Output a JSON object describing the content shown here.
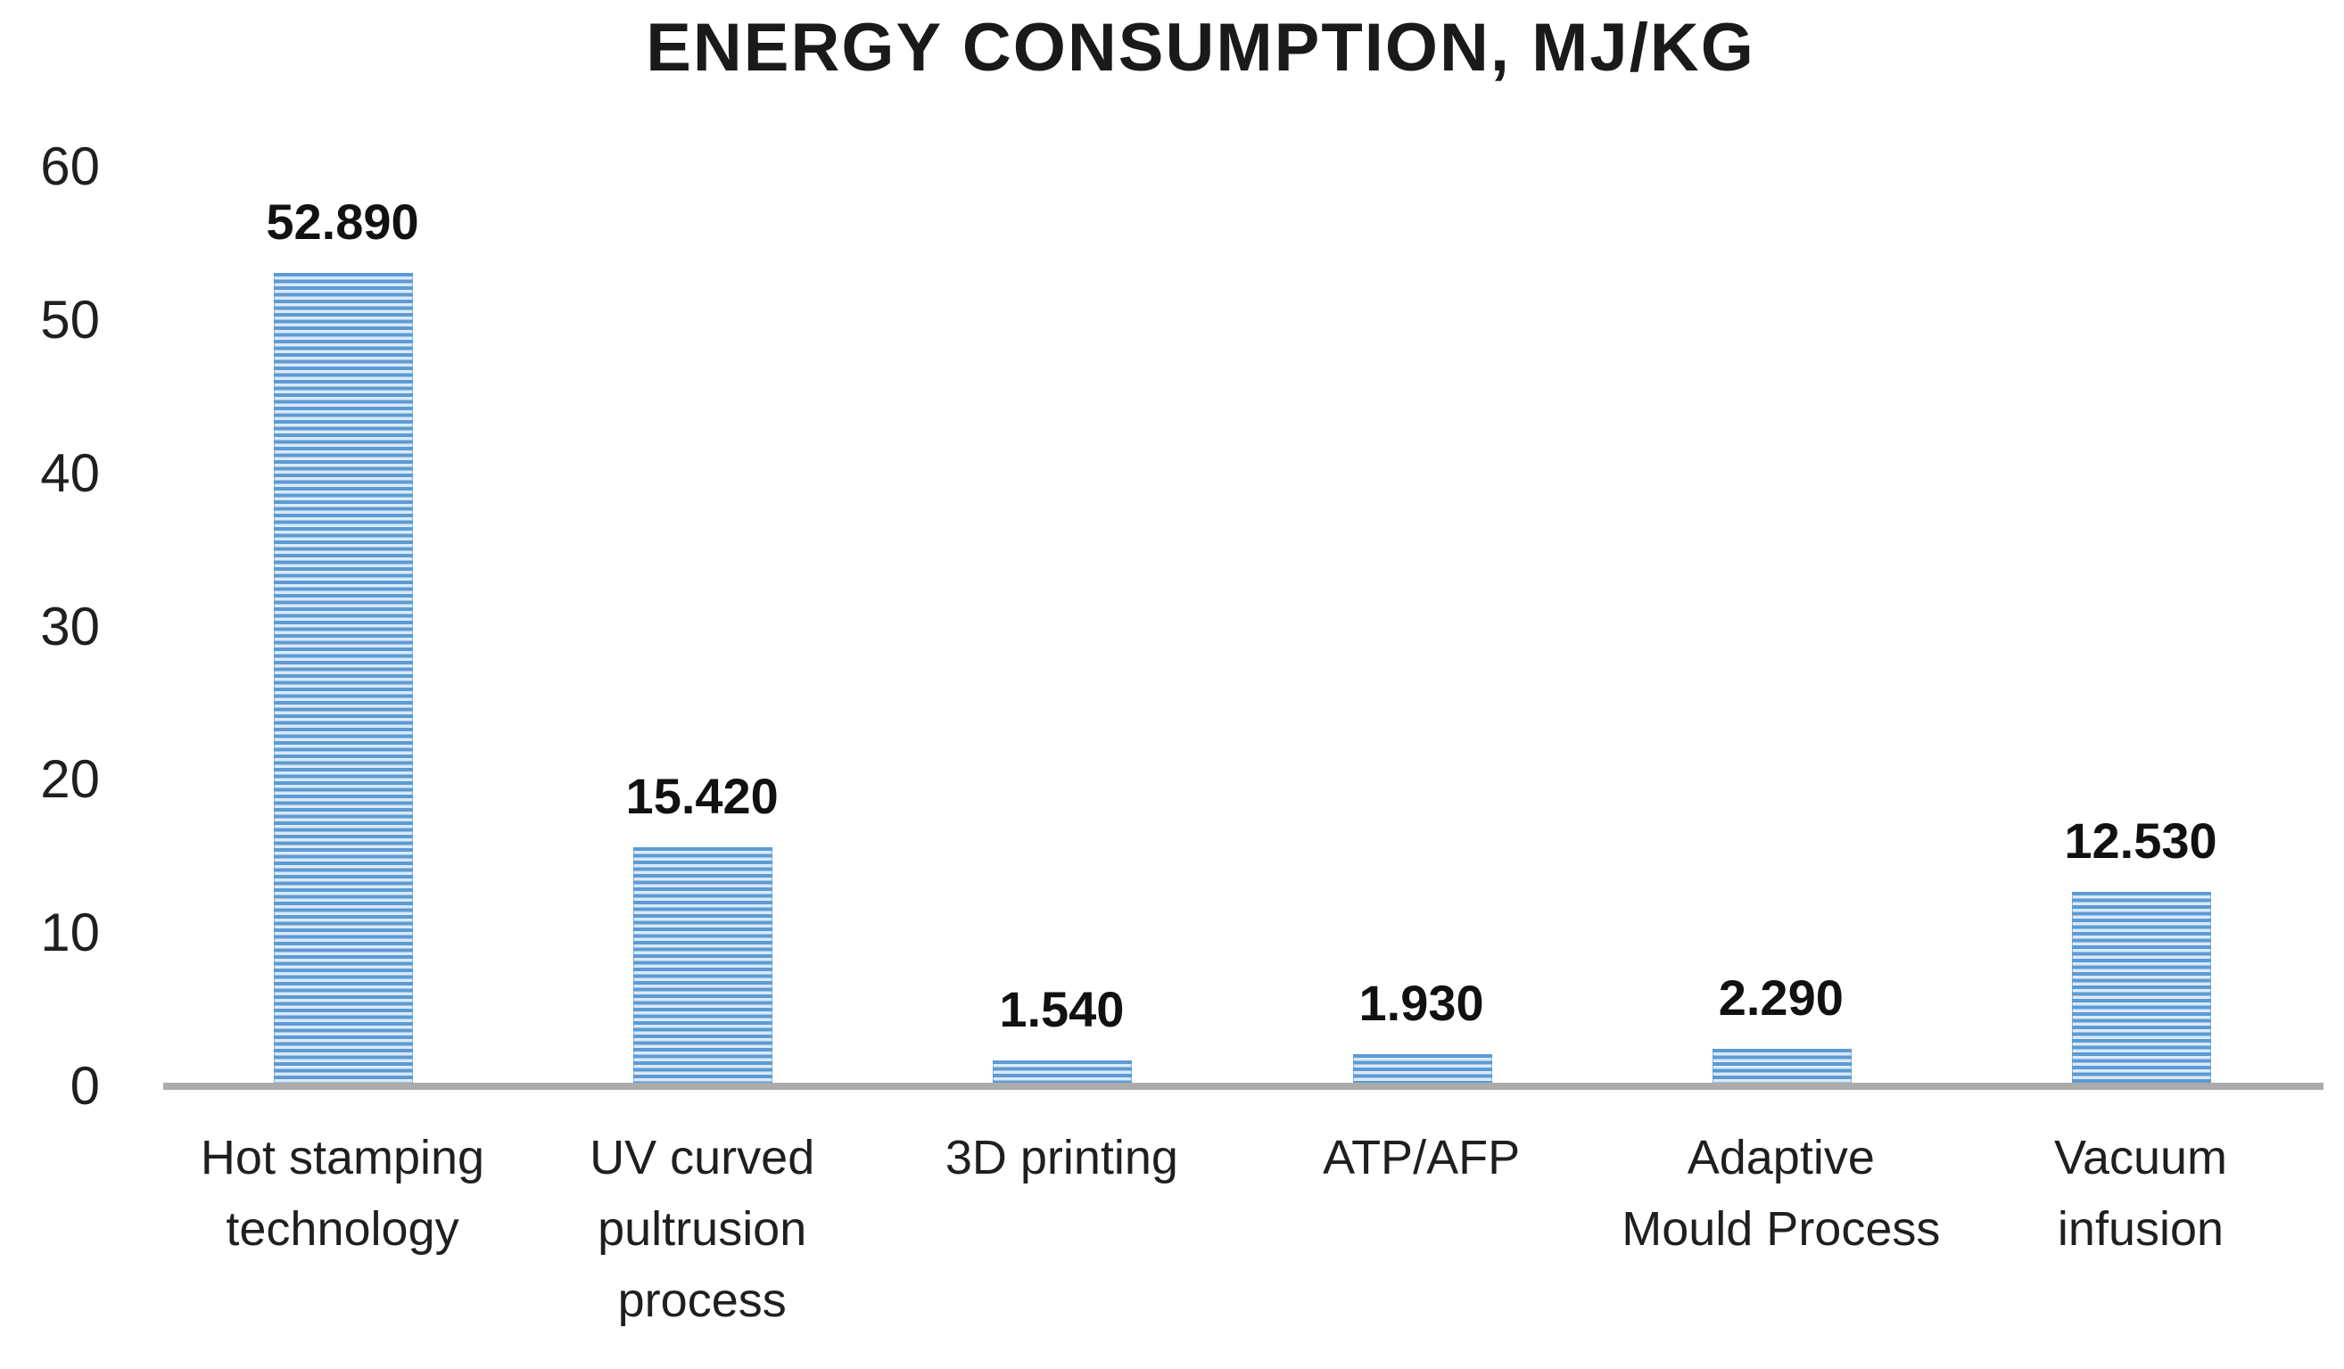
{
  "chart_data": {
    "type": "bar",
    "title": "ENERGY CONSUMPTION, MJ/KG",
    "categories": [
      "Hot stamping technology",
      "UV curved pultrusion process",
      "3D printing",
      "ATP/AFP",
      "Adaptive Mould Process",
      "Vacuum infusion"
    ],
    "category_lines": [
      [
        "Hot stamping",
        "technology"
      ],
      [
        "UV curved",
        "pultrusion",
        "process"
      ],
      [
        "3D printing"
      ],
      [
        "ATP/AFP"
      ],
      [
        "Adaptive",
        "Mould Process"
      ],
      [
        "Vacuum",
        "infusion"
      ]
    ],
    "values": [
      52.89,
      15.42,
      1.54,
      1.93,
      2.29,
      12.53
    ],
    "value_labels": [
      "52.890",
      "15.420",
      "1.540",
      "1.930",
      "2.290",
      "12.530"
    ],
    "y_ticks": [
      0,
      10,
      20,
      30,
      40,
      50,
      60
    ],
    "ylim": [
      0,
      60
    ],
    "xlabel": "",
    "ylabel": "",
    "grid": false,
    "legend": false,
    "bar_fill_pattern": "horizontal-stripes",
    "bar_color": "#5b9bd5",
    "bar_stripe_light": "#dcE9f6",
    "axis_line_color": "#ababab",
    "text_color": "#1f1f1f",
    "background_color": "#ffffff"
  }
}
